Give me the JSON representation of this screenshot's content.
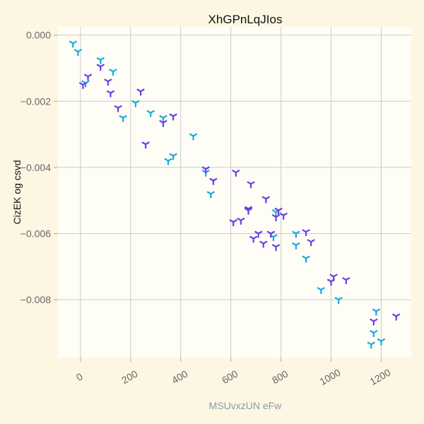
{
  "chart_data": {
    "type": "scatter",
    "title": "XhGPnLqJIos",
    "xlabel": "MSUvxzUN eFw",
    "ylabel": "CizEK og csvd",
    "xlim": [
      -90,
      1320
    ],
    "ylim": [
      -0.00975,
      0.00025
    ],
    "x_ticks": [
      0,
      200,
      400,
      600,
      800,
      1000,
      1200
    ],
    "y_ticks": [
      0.0,
      -0.002,
      -0.004,
      -0.006,
      -0.008
    ],
    "y_tick_labels": [
      "0.000",
      "−0.002",
      "−0.004",
      "−0.006",
      "−0.008"
    ],
    "grid": true,
    "marker": "tri-star",
    "series": [
      {
        "color": "#16a9e0",
        "points": [
          [
            -30,
            -0.00025
          ],
          [
            -10,
            -0.0005
          ],
          [
            20,
            -0.00145
          ],
          [
            80,
            -0.00075
          ],
          [
            130,
            -0.0011
          ],
          [
            170,
            -0.0025
          ],
          [
            220,
            -0.00205
          ],
          [
            280,
            -0.00235
          ],
          [
            330,
            -0.0025
          ],
          [
            350,
            -0.0038
          ],
          [
            370,
            -0.00365
          ],
          [
            450,
            -0.00305
          ],
          [
            500,
            -0.00415
          ],
          [
            520,
            -0.0048
          ],
          [
            770,
            -0.0061
          ],
          [
            780,
            -0.00535
          ],
          [
            860,
            -0.006
          ],
          [
            860,
            -0.00635
          ],
          [
            900,
            -0.00675
          ],
          [
            960,
            -0.0077
          ],
          [
            1030,
            -0.008
          ],
          [
            1160,
            -0.00935
          ],
          [
            1170,
            -0.009
          ],
          [
            1180,
            -0.00835
          ],
          [
            1200,
            -0.00925
          ]
        ]
      },
      {
        "color": "#6a3de8",
        "points": [
          [
            10,
            -0.0015
          ],
          [
            30,
            -0.00125
          ],
          [
            80,
            -0.00095
          ],
          [
            110,
            -0.0014
          ],
          [
            120,
            -0.00175
          ],
          [
            150,
            -0.0022
          ],
          [
            240,
            -0.0017
          ],
          [
            260,
            -0.0033
          ],
          [
            330,
            -0.00265
          ],
          [
            370,
            -0.00245
          ],
          [
            500,
            -0.00405
          ],
          [
            530,
            -0.0044
          ],
          [
            610,
            -0.00565
          ],
          [
            620,
            -0.00415
          ],
          [
            640,
            -0.0056
          ],
          [
            670,
            -0.00525
          ],
          [
            670,
            -0.0053
          ],
          [
            680,
            -0.0045
          ],
          [
            690,
            -0.00615
          ],
          [
            710,
            -0.006
          ],
          [
            730,
            -0.0063
          ],
          [
            740,
            -0.00495
          ],
          [
            760,
            -0.006
          ],
          [
            780,
            -0.0055
          ],
          [
            780,
            -0.0064
          ],
          [
            790,
            -0.0053
          ],
          [
            810,
            -0.00545
          ],
          [
            900,
            -0.00595
          ],
          [
            920,
            -0.00625
          ],
          [
            1000,
            -0.00745
          ],
          [
            1010,
            -0.0073
          ],
          [
            1060,
            -0.0074
          ],
          [
            1170,
            -0.00865
          ],
          [
            1260,
            -0.0085
          ]
        ]
      }
    ]
  }
}
